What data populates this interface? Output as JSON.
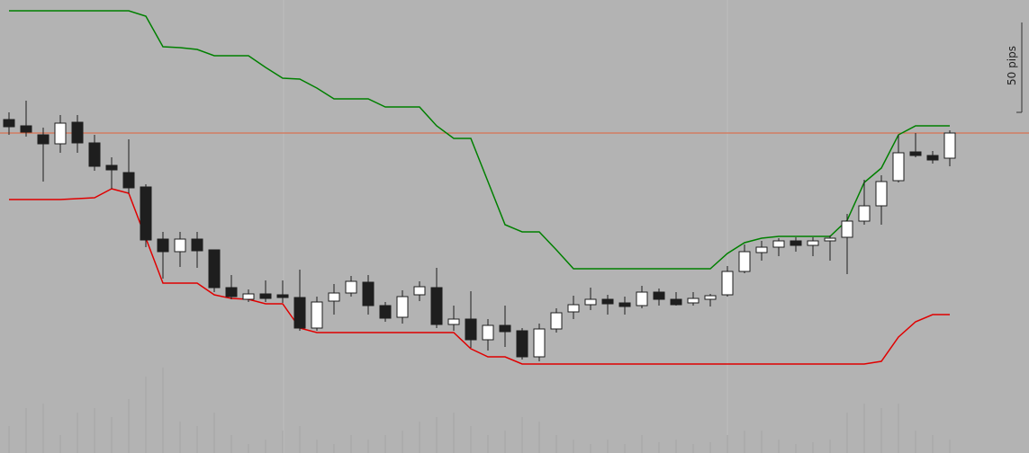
{
  "chart_data": {
    "type": "candlestick",
    "ylim": [
      0,
      252
    ],
    "up_color": "#ffffff",
    "down_color": "#1e1e1e",
    "open": [
      185.5,
      182,
      177,
      172,
      184,
      172.5,
      160,
      156,
      148,
      119,
      112,
      119,
      113,
      92,
      85.5,
      88.5,
      88,
      86.5,
      69.5,
      84.5,
      89,
      95,
      82,
      75.5,
      88,
      92,
      71.5,
      74.5,
      63,
      71,
      68,
      53.5,
      69,
      78.5,
      82.5,
      85.5,
      83.5,
      82,
      89.5,
      85.5,
      83.5,
      85.5,
      88,
      101,
      111.5,
      114.5,
      118,
      115.5,
      118,
      120,
      129,
      137.5,
      151.5,
      167.5,
      165.5,
      164
    ],
    "high": [
      189.5,
      196,
      181,
      188,
      188,
      177,
      164.5,
      174.5,
      149.5,
      123,
      123,
      123,
      113,
      99,
      91,
      96,
      96,
      102,
      87,
      94,
      98.5,
      99,
      84,
      90.5,
      95.5,
      103,
      82,
      90,
      74.5,
      82,
      69.5,
      72,
      80.5,
      87.5,
      92,
      88,
      87,
      93,
      91.5,
      89.5,
      89.5,
      88.5,
      104,
      116,
      118,
      119.5,
      120,
      120,
      121,
      133,
      152,
      154.5,
      177,
      178,
      168,
      179.5
    ],
    "low": [
      177,
      176,
      151,
      167,
      167,
      157,
      147,
      144.5,
      114.5,
      97,
      103.5,
      103,
      89.5,
      85.5,
      84,
      84,
      83.5,
      68,
      68,
      77,
      87,
      77,
      73,
      72,
      84.5,
      69.5,
      68,
      58.5,
      57,
      59,
      52,
      51,
      67,
      74.5,
      79.5,
      77,
      77,
      80.5,
      82,
      82,
      82,
      81.5,
      87,
      100,
      107,
      109.5,
      112,
      109.5,
      107,
      99.5,
      127,
      127,
      150.5,
      164.5,
      161,
      159.5
    ],
    "close": [
      181.5,
      178.5,
      172,
      183.5,
      172.5,
      159.5,
      157.5,
      147.5,
      118.5,
      112,
      119,
      112.5,
      92,
      87,
      88.5,
      86,
      86.5,
      69.5,
      84,
      89,
      95.5,
      82,
      75,
      87,
      92.5,
      71.5,
      74.5,
      63,
      71,
      67.5,
      53.5,
      69,
      78,
      82.5,
      85.5,
      83,
      81.5,
      89.5,
      85.5,
      82.5,
      86,
      87.5,
      101,
      112,
      114.5,
      118,
      115.5,
      118,
      119.5,
      129,
      137.5,
      151,
      167,
      165.5,
      163,
      178
    ],
    "lines": [
      {
        "color": "#008000",
        "values": [
          246,
          246,
          246,
          246,
          246,
          246,
          246,
          246,
          243,
          226,
          225.5,
          224.5,
          221,
          221,
          221,
          214.5,
          208.5,
          208,
          203,
          197,
          197,
          197,
          192.5,
          192.5,
          192.5,
          182,
          175,
          175,
          151,
          127,
          123,
          123,
          113,
          102.5,
          102.5,
          102.5,
          102.5,
          102.5,
          102.5,
          102.5,
          102.5,
          102.5,
          111,
          117,
          119.5,
          120.5,
          120.5,
          120.5,
          120.5,
          129.5,
          150.5,
          158.5,
          177,
          182,
          182,
          182
        ]
      },
      {
        "color": "#e00000",
        "values": [
          141,
          141,
          141,
          141,
          141.5,
          142,
          147,
          144.5,
          119.5,
          94.5,
          94.5,
          94.5,
          88,
          86,
          85.5,
          83,
          83,
          69.5,
          67,
          67,
          67,
          67,
          67,
          67,
          67,
          67,
          67,
          58,
          53.5,
          53.5,
          49.5,
          49.5,
          49.5,
          49.5,
          49.5,
          49.5,
          49.5,
          49.5,
          49.5,
          49.5,
          49.5,
          49.5,
          49.5,
          49.5,
          49.5,
          49.5,
          49.5,
          49.5,
          49.5,
          49.5,
          49.5,
          51,
          64.5,
          73,
          77,
          77
        ]
      }
    ],
    "price_line": {
      "value": 178,
      "color": "#e0603a"
    },
    "volume": {
      "color": "#a4a4a4",
      "vlim": [
        0,
        100
      ],
      "values": [
        30,
        50,
        55,
        20,
        45,
        50,
        40,
        60,
        85,
        95,
        35,
        30,
        45,
        20,
        10,
        15,
        25,
        30,
        15,
        10,
        20,
        15,
        20,
        25,
        35,
        40,
        45,
        30,
        20,
        25,
        40,
        35,
        20,
        15,
        10,
        15,
        10,
        20,
        12,
        15,
        10,
        12,
        20,
        25,
        25,
        15,
        10,
        12,
        15,
        45,
        55,
        50,
        55,
        25,
        20,
        15
      ]
    },
    "scale_bar": {
      "value": 50,
      "label": "50 pips"
    }
  }
}
